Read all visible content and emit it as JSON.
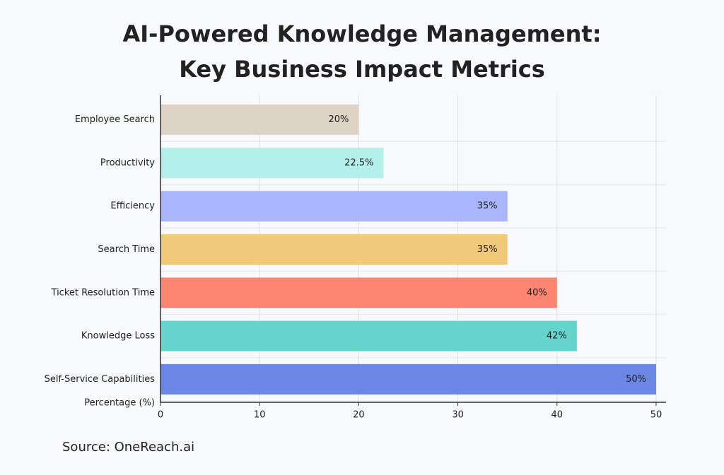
{
  "chart_data": {
    "type": "barh",
    "title": "AI-Powered Knowledge Management:",
    "subtitle": "Key Business Impact Metrics",
    "categories": [
      "Employee Search",
      "Productivity",
      "Efficiency",
      "Search Time",
      "Ticket Resolution Time",
      "Knowledge Loss",
      "Self-Service Capabilities"
    ],
    "values": [
      20,
      22.5,
      35,
      35,
      40,
      42,
      50
    ],
    "value_labels": [
      "20%",
      "22.5%",
      "35%",
      "35%",
      "40%",
      "42%",
      "50%"
    ],
    "colors": [
      "#ddd3c4",
      "#b3f0ea",
      "#a9b6fd",
      "#f2c879",
      "#fd8571",
      "#63d5cd",
      "#6b86e5"
    ],
    "x_label": "Percentage (%)",
    "xlim": [
      0,
      51
    ],
    "xticks": [
      0,
      10,
      20,
      30,
      40,
      50
    ],
    "grid": true,
    "source": "Source: OneReach.ai"
  }
}
